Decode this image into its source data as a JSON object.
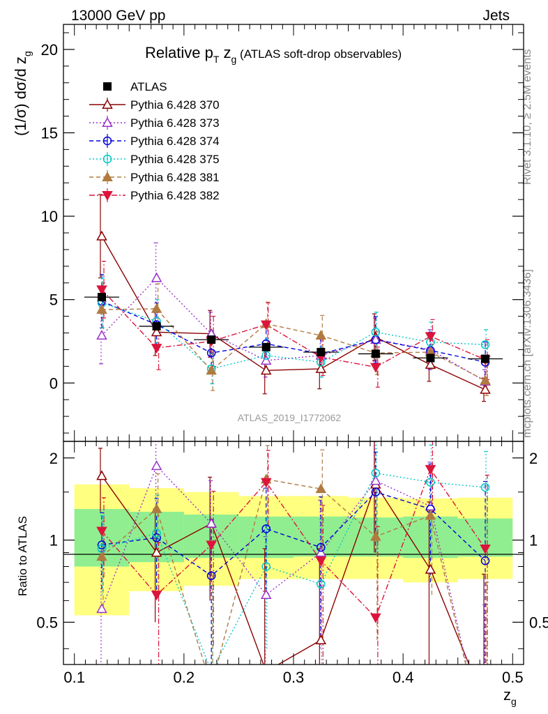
{
  "header": {
    "left": "13000 GeV pp",
    "right": "Jets"
  },
  "side_labels": {
    "top": "Rivet 3.1.10, ≥ 2.5M events",
    "bottom": "mcplots.cern.ch [arXiv:1306.3436]"
  },
  "chart_data": [
    {
      "type": "line",
      "title_main": "Relative p",
      "title_sub": "T",
      "title_var": " z",
      "title_var_sub": "g",
      "title_suffix": " (ATLAS soft-drop observables)",
      "ylabel": "(1/σ) dσ/d z",
      "ylabel_sub": "g",
      "ylim": [
        -3.5,
        21.5
      ],
      "xlim": [
        0.09,
        0.51
      ],
      "yticks": [
        0,
        5,
        10,
        15,
        20
      ],
      "watermark": "ATLAS_2019_I1772062",
      "x": [
        0.125,
        0.175,
        0.225,
        0.275,
        0.325,
        0.375,
        0.425,
        0.475
      ],
      "reference": {
        "name": "ATLAS",
        "color": "#000000",
        "values": [
          5.15,
          3.4,
          2.6,
          2.15,
          1.85,
          1.75,
          1.5,
          1.45
        ]
      },
      "series": [
        {
          "name": "Pythia 6.428 370",
          "color": "#8b0000",
          "marker": "triangle-up-open",
          "dash": "",
          "values": [
            8.8,
            3.05,
            2.95,
            0.75,
            0.85,
            2.75,
            1.1,
            -0.4
          ],
          "errors": [
            2.5,
            1.4,
            1.4,
            1.4,
            1.2,
            1.4,
            1.0,
            0.7
          ]
        },
        {
          "name": "Pythia 6.428 373",
          "color": "#9932cc",
          "marker": "triangle-up-open",
          "dash": "2,3",
          "values": [
            2.85,
            6.3,
            2.95,
            1.35,
            1.65,
            2.6,
            2.0,
            0.1
          ],
          "errors": [
            1.7,
            2.1,
            1.3,
            1.0,
            1.0,
            1.3,
            1.2,
            0.7
          ]
        },
        {
          "name": "Pythia 6.428 374",
          "color": "#0000dd",
          "marker": "circle-open",
          "dash": "6,4",
          "values": [
            4.9,
            3.5,
            1.8,
            2.35,
            1.75,
            2.6,
            1.95,
            1.25
          ],
          "errors": [
            1.6,
            1.3,
            1.2,
            1.1,
            1.0,
            1.4,
            1.1,
            1.2
          ]
        },
        {
          "name": "Pythia 6.428 375",
          "color": "#00c8c8",
          "marker": "circle-open",
          "dash": "2,3",
          "values": [
            4.8,
            3.7,
            0.85,
            1.65,
            1.25,
            3.05,
            2.45,
            2.3
          ],
          "errors": [
            1.5,
            1.3,
            0.9,
            1.0,
            0.9,
            1.2,
            1.2,
            0.9
          ]
        },
        {
          "name": "Pythia 6.428 381",
          "color": "#b07a40",
          "marker": "triangle-up-filled",
          "dash": "6,4",
          "values": [
            4.4,
            4.45,
            0.75,
            3.55,
            2.85,
            1.8,
            1.85,
            0.15
          ],
          "errors": [
            1.6,
            1.5,
            1.2,
            1.3,
            1.2,
            1.3,
            1.0,
            0.9
          ]
        },
        {
          "name": "Pythia 6.428 382",
          "color": "#dc143c",
          "marker": "triangle-down-filled",
          "dash": "8,3,2,3",
          "values": [
            5.6,
            2.1,
            2.5,
            3.5,
            1.55,
            0.95,
            2.8,
            1.4
          ],
          "errors": [
            1.7,
            1.3,
            1.5,
            1.3,
            1.1,
            1.2,
            1.0,
            1.2
          ]
        }
      ]
    },
    {
      "type": "line",
      "ylabel": "Ratio to ATLAS",
      "xlabel": "z",
      "xlabel_sub": "g",
      "xlim": [
        0.09,
        0.51
      ],
      "ylim": [
        0.35,
        2.3
      ],
      "ylog": true,
      "yticks": [
        0.5,
        1,
        2
      ],
      "yticklabels": [
        "0.5",
        "1",
        "2"
      ],
      "xticks": [
        0.1,
        0.2,
        0.3,
        0.4,
        0.5
      ],
      "xticklabels": [
        "0.1",
        "0.2",
        "0.3",
        "0.4",
        "0.5"
      ],
      "x": [
        0.125,
        0.175,
        0.225,
        0.275,
        0.325,
        0.375,
        0.425,
        0.475
      ],
      "band_edges": [
        0.1,
        0.15,
        0.2,
        0.25,
        0.3,
        0.35,
        0.4,
        0.45,
        0.5
      ],
      "band_yellow_color": "#ffff80",
      "band_green_color": "#90ee90",
      "band_yellow": [
        [
          0.53,
          1.6
        ],
        [
          0.65,
          1.55
        ],
        [
          0.68,
          1.5
        ],
        [
          0.72,
          1.45
        ],
        [
          0.72,
          1.45
        ],
        [
          0.72,
          1.43
        ],
        [
          0.7,
          1.42
        ],
        [
          0.72,
          1.43
        ]
      ],
      "band_green": [
        [
          0.8,
          1.3
        ],
        [
          0.83,
          1.27
        ],
        [
          0.86,
          1.24
        ],
        [
          0.86,
          1.22
        ],
        [
          0.87,
          1.22
        ],
        [
          0.87,
          1.21
        ],
        [
          0.86,
          1.22
        ],
        [
          0.87,
          1.2
        ]
      ],
      "series": [
        {
          "name": "Pythia 6.428 370",
          "values": [
            1.72,
            0.9,
            1.15,
            0.33,
            0.43,
            1.6,
            0.78,
            0.25
          ],
          "errors": [
            0.45,
            0.4,
            0.55,
            0.6,
            0.5,
            0.7,
            0.6,
            0.5
          ]
        },
        {
          "name": "Pythia 6.428 373",
          "values": [
            0.56,
            1.87,
            1.15,
            0.63,
            0.9,
            1.65,
            1.33,
            0.08
          ],
          "errors": [
            0.35,
            0.6,
            0.5,
            0.4,
            0.5,
            0.65,
            0.6,
            0.5
          ]
        },
        {
          "name": "Pythia 6.428 374",
          "values": [
            0.96,
            1.02,
            0.74,
            1.1,
            0.94,
            1.5,
            1.3,
            0.84
          ],
          "errors": [
            0.3,
            0.4,
            0.45,
            0.45,
            0.5,
            0.6,
            0.6,
            0.8
          ]
        },
        {
          "name": "Pythia 6.428 375",
          "values": [
            0.93,
            1.06,
            0.33,
            0.8,
            0.69,
            1.76,
            1.63,
            1.56
          ],
          "errors": [
            0.3,
            0.4,
            0.35,
            0.4,
            0.5,
            0.6,
            0.6,
            0.55
          ]
        },
        {
          "name": "Pythia 6.428 381",
          "values": [
            0.87,
            1.3,
            0.29,
            1.67,
            1.54,
            1.03,
            1.23,
            0.1
          ],
          "errors": [
            0.3,
            0.45,
            0.45,
            0.55,
            0.6,
            0.6,
            0.6,
            0.6
          ]
        },
        {
          "name": "Pythia 6.428 382",
          "values": [
            1.08,
            0.63,
            0.96,
            1.63,
            0.84,
            0.52,
            1.82,
            0.93
          ],
          "errors": [
            0.35,
            0.35,
            0.55,
            0.5,
            0.5,
            0.6,
            0.55,
            0.8
          ]
        }
      ]
    }
  ]
}
